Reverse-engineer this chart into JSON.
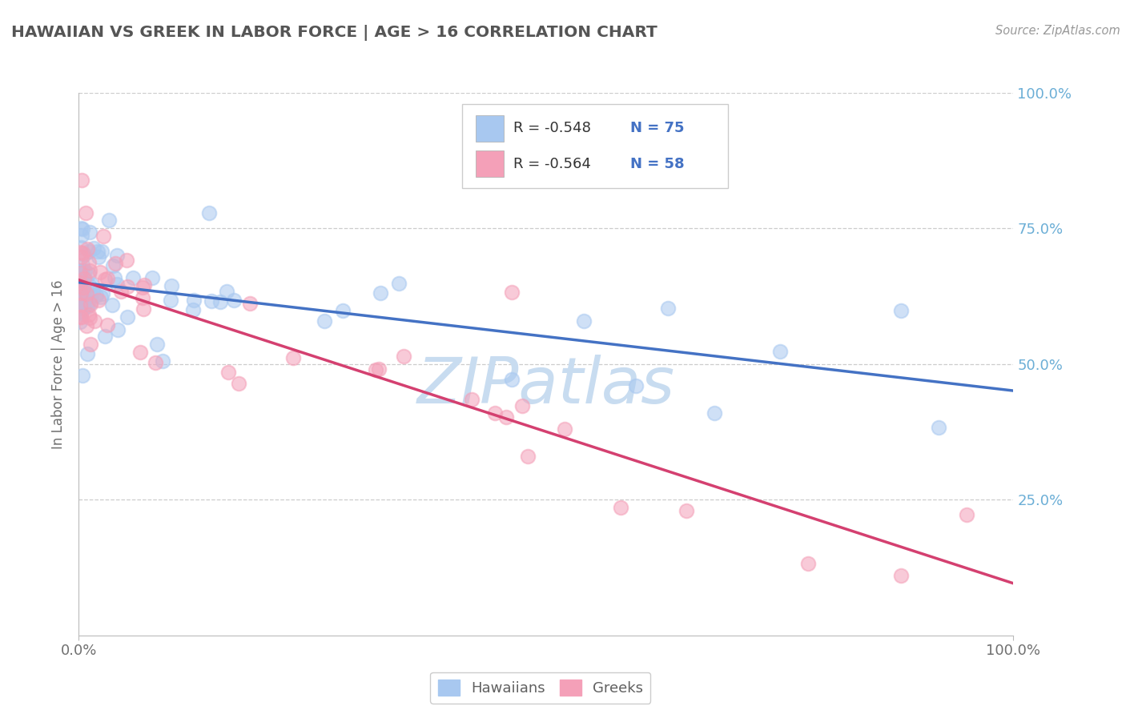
{
  "title": "HAWAIIAN VS GREEK IN LABOR FORCE | AGE > 16 CORRELATION CHART",
  "source": "Source: ZipAtlas.com",
  "ylabel": "In Labor Force | Age > 16",
  "xlim": [
    0.0,
    1.0
  ],
  "ylim": [
    0.0,
    1.0
  ],
  "hawaiian_R": -0.548,
  "hawaiian_N": 75,
  "greek_R": -0.564,
  "greek_N": 58,
  "hawaiian_dot_color": "#A8C8F0",
  "greek_dot_color": "#F4A0B8",
  "hawaiian_line_color": "#4472C4",
  "greek_line_color": "#D44070",
  "background_color": "#FFFFFF",
  "grid_color": "#CCCCCC",
  "title_color": "#555555",
  "legend_text_color": "#4472C4",
  "tick_color_right": "#6BAED6",
  "watermark_color": "#C8DCF0",
  "watermark_text": "ZIPAtlas",
  "legend_R_color": "#333333",
  "legend_N_color": "#4472C4"
}
